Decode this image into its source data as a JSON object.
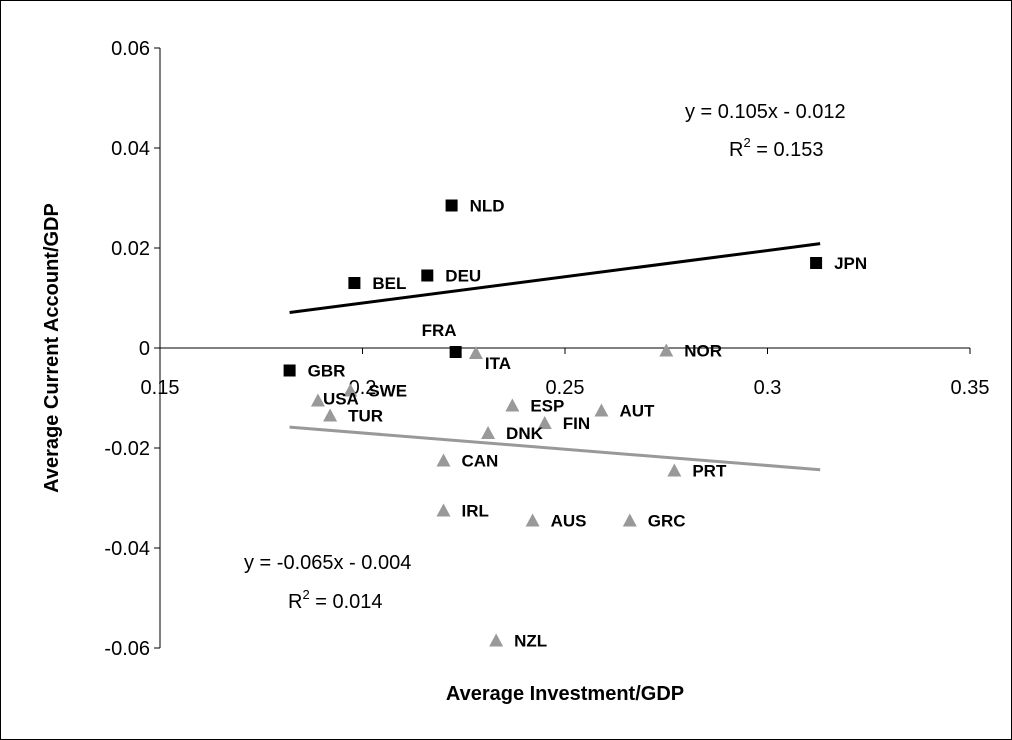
{
  "chart_data": {
    "type": "scatter",
    "title": "",
    "xlabel": "Average Investment/GDP",
    "ylabel": "Average Current Account/GDP",
    "xlim": [
      0.15,
      0.35
    ],
    "ylim": [
      -0.06,
      0.06
    ],
    "x_ticks": [
      {
        "value": 0.15,
        "label": "0.15"
      },
      {
        "value": 0.2,
        "label": "0.2"
      },
      {
        "value": 0.25,
        "label": "0.25"
      },
      {
        "value": 0.3,
        "label": "0.3"
      },
      {
        "value": 0.35,
        "label": "0.35"
      }
    ],
    "y_ticks": [
      {
        "value": 0.06,
        "label": "0.06"
      },
      {
        "value": 0.04,
        "label": "0.04"
      },
      {
        "value": 0.02,
        "label": "0.02"
      },
      {
        "value": 0,
        "label": "0"
      },
      {
        "value": -0.02,
        "label": "-0.02"
      },
      {
        "value": -0.04,
        "label": "-0.04"
      },
      {
        "value": -0.06,
        "label": "-0.06"
      }
    ],
    "grid": false,
    "series": [
      {
        "marker": "square",
        "color": "#000000",
        "points": [
          {
            "label": "NLD",
            "x": 0.222,
            "y": 0.0285
          },
          {
            "label": "JPN",
            "x": 0.312,
            "y": 0.017
          },
          {
            "label": "BEL",
            "x": 0.198,
            "y": 0.013
          },
          {
            "label": "DEU",
            "x": 0.216,
            "y": 0.0145
          },
          {
            "label": "FRA",
            "x": 0.223,
            "y": -0.0008
          },
          {
            "label": "GBR",
            "x": 0.182,
            "y": -0.0045
          }
        ],
        "trendline": {
          "slope": 0.105,
          "intercept": -0.012,
          "x_range": [
            0.182,
            0.313
          ],
          "color": "#000000"
        }
      },
      {
        "marker": "triangle",
        "color": "#999999",
        "points": [
          {
            "label": "ITA",
            "x": 0.228,
            "y": -0.001
          },
          {
            "label": "NOR",
            "x": 0.275,
            "y": -0.0005
          },
          {
            "label": "SWE",
            "x": 0.197,
            "y": -0.0085
          },
          {
            "label": "USA",
            "x": 0.189,
            "y": -0.0105
          },
          {
            "label": "TUR",
            "x": 0.192,
            "y": -0.0135
          },
          {
            "label": "ESP",
            "x": 0.237,
            "y": -0.0115
          },
          {
            "label": "AUT",
            "x": 0.259,
            "y": -0.0125
          },
          {
            "label": "FIN",
            "x": 0.245,
            "y": -0.015
          },
          {
            "label": "DNK",
            "x": 0.231,
            "y": -0.017
          },
          {
            "label": "CAN",
            "x": 0.22,
            "y": -0.0225
          },
          {
            "label": "PRT",
            "x": 0.277,
            "y": -0.0245
          },
          {
            "label": "IRL",
            "x": 0.22,
            "y": -0.0325
          },
          {
            "label": "AUS",
            "x": 0.242,
            "y": -0.0345
          },
          {
            "label": "GRC",
            "x": 0.266,
            "y": -0.0345
          },
          {
            "label": "NZL",
            "x": 0.233,
            "y": -0.0585
          }
        ],
        "trendline": {
          "slope": -0.065,
          "intercept": -0.004,
          "x_range": [
            0.182,
            0.313
          ],
          "color": "#999999"
        }
      }
    ],
    "annotations": [
      {
        "id": "eq-upper",
        "equation": "y = 0.105x - 0.012",
        "r2_prefix": "R",
        "r2_exp": "2",
        "r2_value": " = 0.153"
      },
      {
        "id": "eq-lower",
        "equation": "y = -0.065x - 0.004",
        "r2_prefix": "R",
        "r2_exp": "2",
        "r2_value": " = 0.014"
      }
    ]
  }
}
